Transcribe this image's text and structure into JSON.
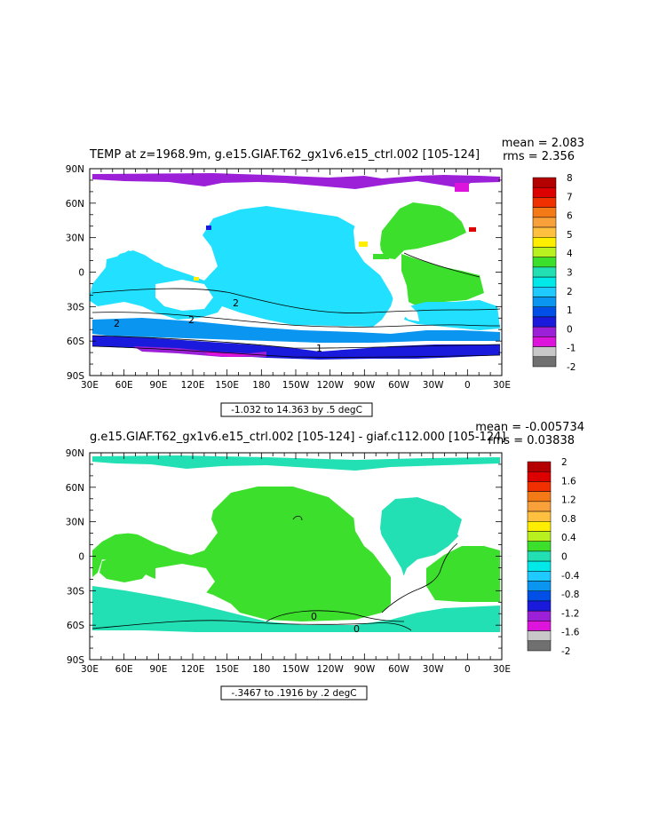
{
  "chart_data": [
    {
      "type": "heatmap",
      "title": "TEMP at z=1968.9m, g.e15.GIAF.T62_gx1v6.e15_ctrl.002 [105-124]",
      "stats": {
        "mean": "mean = 2.083",
        "rms": "rms = 2.356"
      },
      "contour_info": "-1.032 to 14.363 by .5 degC",
      "x_tick_labels": [
        "30E",
        "60E",
        "90E",
        "120E",
        "150E",
        "180",
        "150W",
        "120W",
        "90W",
        "60W",
        "30W",
        "0",
        "30E"
      ],
      "y_tick_labels": [
        "90N",
        "60N",
        "30N",
        "0",
        "30S",
        "60S",
        "90S"
      ],
      "xlim": [
        30,
        390
      ],
      "ylim": [
        -90,
        90
      ],
      "colorbar": {
        "labels": [
          "8",
          "7",
          "6",
          "5",
          "4",
          "3",
          "2",
          "1",
          "0",
          "-1",
          "-2"
        ],
        "colors": [
          "#b40000",
          "#dd0000",
          "#f03000",
          "#f47a18",
          "#f8a03a",
          "#ffc040",
          "#ffee00",
          "#b8f020",
          "#3ce02c",
          "#22e0b4",
          "#00e8e8",
          "#1ecaff",
          "#0a96f0",
          "#0050e8",
          "#1a1adc",
          "#9c20d8",
          "#dc14dc",
          "#c8c8c8",
          "#707070"
        ]
      },
      "contour_labels": [
        "2",
        "2",
        "2",
        "1"
      ]
    },
    {
      "type": "heatmap",
      "title": "g.e15.GIAF.T62_gx1v6.e15_ctrl.002 [105-124] - giaf.c112.000 [105-124]",
      "stats": {
        "mean": "mean = -0.005734",
        "rms": "rms = 0.03838"
      },
      "contour_info": "-.3467 to .1916 by .2 degC",
      "x_tick_labels": [
        "30E",
        "60E",
        "90E",
        "120E",
        "150E",
        "180",
        "150W",
        "120W",
        "90W",
        "60W",
        "30W",
        "0",
        "30E"
      ],
      "y_tick_labels": [
        "90N",
        "60N",
        "30N",
        "0",
        "30S",
        "60S",
        "90S"
      ],
      "xlim": [
        30,
        390
      ],
      "ylim": [
        -90,
        90
      ],
      "colorbar": {
        "labels": [
          "2",
          "1.6",
          "1.2",
          "0.8",
          "0.4",
          "0",
          "-0.4",
          "-0.8",
          "-1.2",
          "-1.6",
          "-2"
        ],
        "colors": [
          "#b40000",
          "#dd0000",
          "#f03000",
          "#f47a18",
          "#f8a03a",
          "#ffc040",
          "#ffee00",
          "#b8f020",
          "#3ce02c",
          "#22e0b4",
          "#00e8e8",
          "#1ecaff",
          "#0a96f0",
          "#0050e8",
          "#1a1adc",
          "#9c20d8",
          "#dc14dc",
          "#c8c8c8",
          "#707070"
        ]
      },
      "contour_labels": [
        "0",
        "0"
      ]
    }
  ]
}
